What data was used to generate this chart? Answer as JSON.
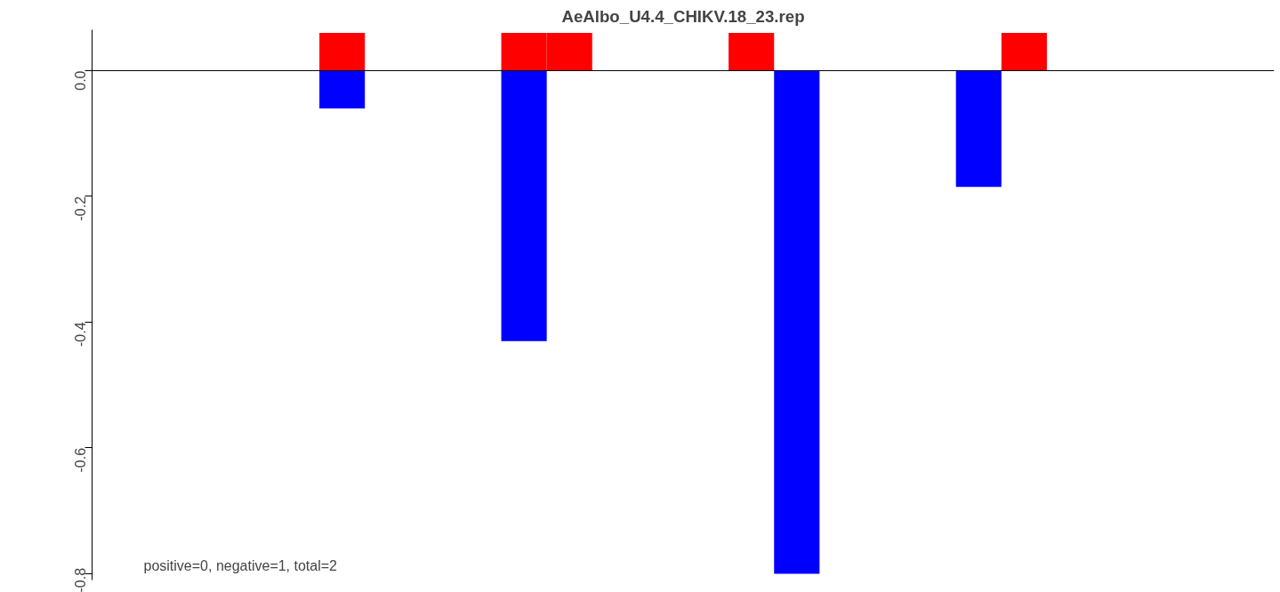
{
  "chart_data": {
    "type": "bar",
    "title": "AeAlbo_U4.4_CHIKV.18_23.rep",
    "categories": [
      null,
      null,
      null,
      null,
      null,
      null,
      null,
      null,
      null,
      null,
      null,
      null,
      null,
      null,
      null,
      null,
      null,
      null,
      null,
      null,
      null,
      null,
      null,
      null,
      null,
      null
    ],
    "series": [
      {
        "color": "#ff0000",
        "values": [
          null,
          null,
          null,
          null,
          null,
          0.06,
          null,
          null,
          null,
          0.06,
          0.06,
          null,
          null,
          null,
          0.06,
          null,
          null,
          null,
          null,
          null,
          0.06,
          null,
          null,
          null,
          null,
          null
        ]
      },
      {
        "color": "#0000ff",
        "values": [
          null,
          null,
          null,
          null,
          null,
          -0.06,
          null,
          null,
          null,
          -0.43,
          null,
          null,
          null,
          null,
          null,
          -0.8,
          null,
          null,
          null,
          -0.185,
          null,
          null,
          null,
          null,
          null,
          null
        ]
      }
    ],
    "ylim": [
      -0.81,
      0.065
    ],
    "yticks": [
      {
        "value": 0,
        "label": "0.0"
      },
      {
        "value": -0.2,
        "label": "-0.2"
      },
      {
        "value": -0.4,
        "label": "-0.4"
      },
      {
        "value": -0.6,
        "label": "-0.6"
      },
      {
        "value": -0.8,
        "label": "-0.8"
      }
    ],
    "ref_lines": [
      {
        "axis": "y",
        "value": 0,
        "color": "#000000"
      }
    ],
    "annotations": [
      "positive=0, negative=1, total=2"
    ],
    "stacked": true,
    "grid": false
  }
}
